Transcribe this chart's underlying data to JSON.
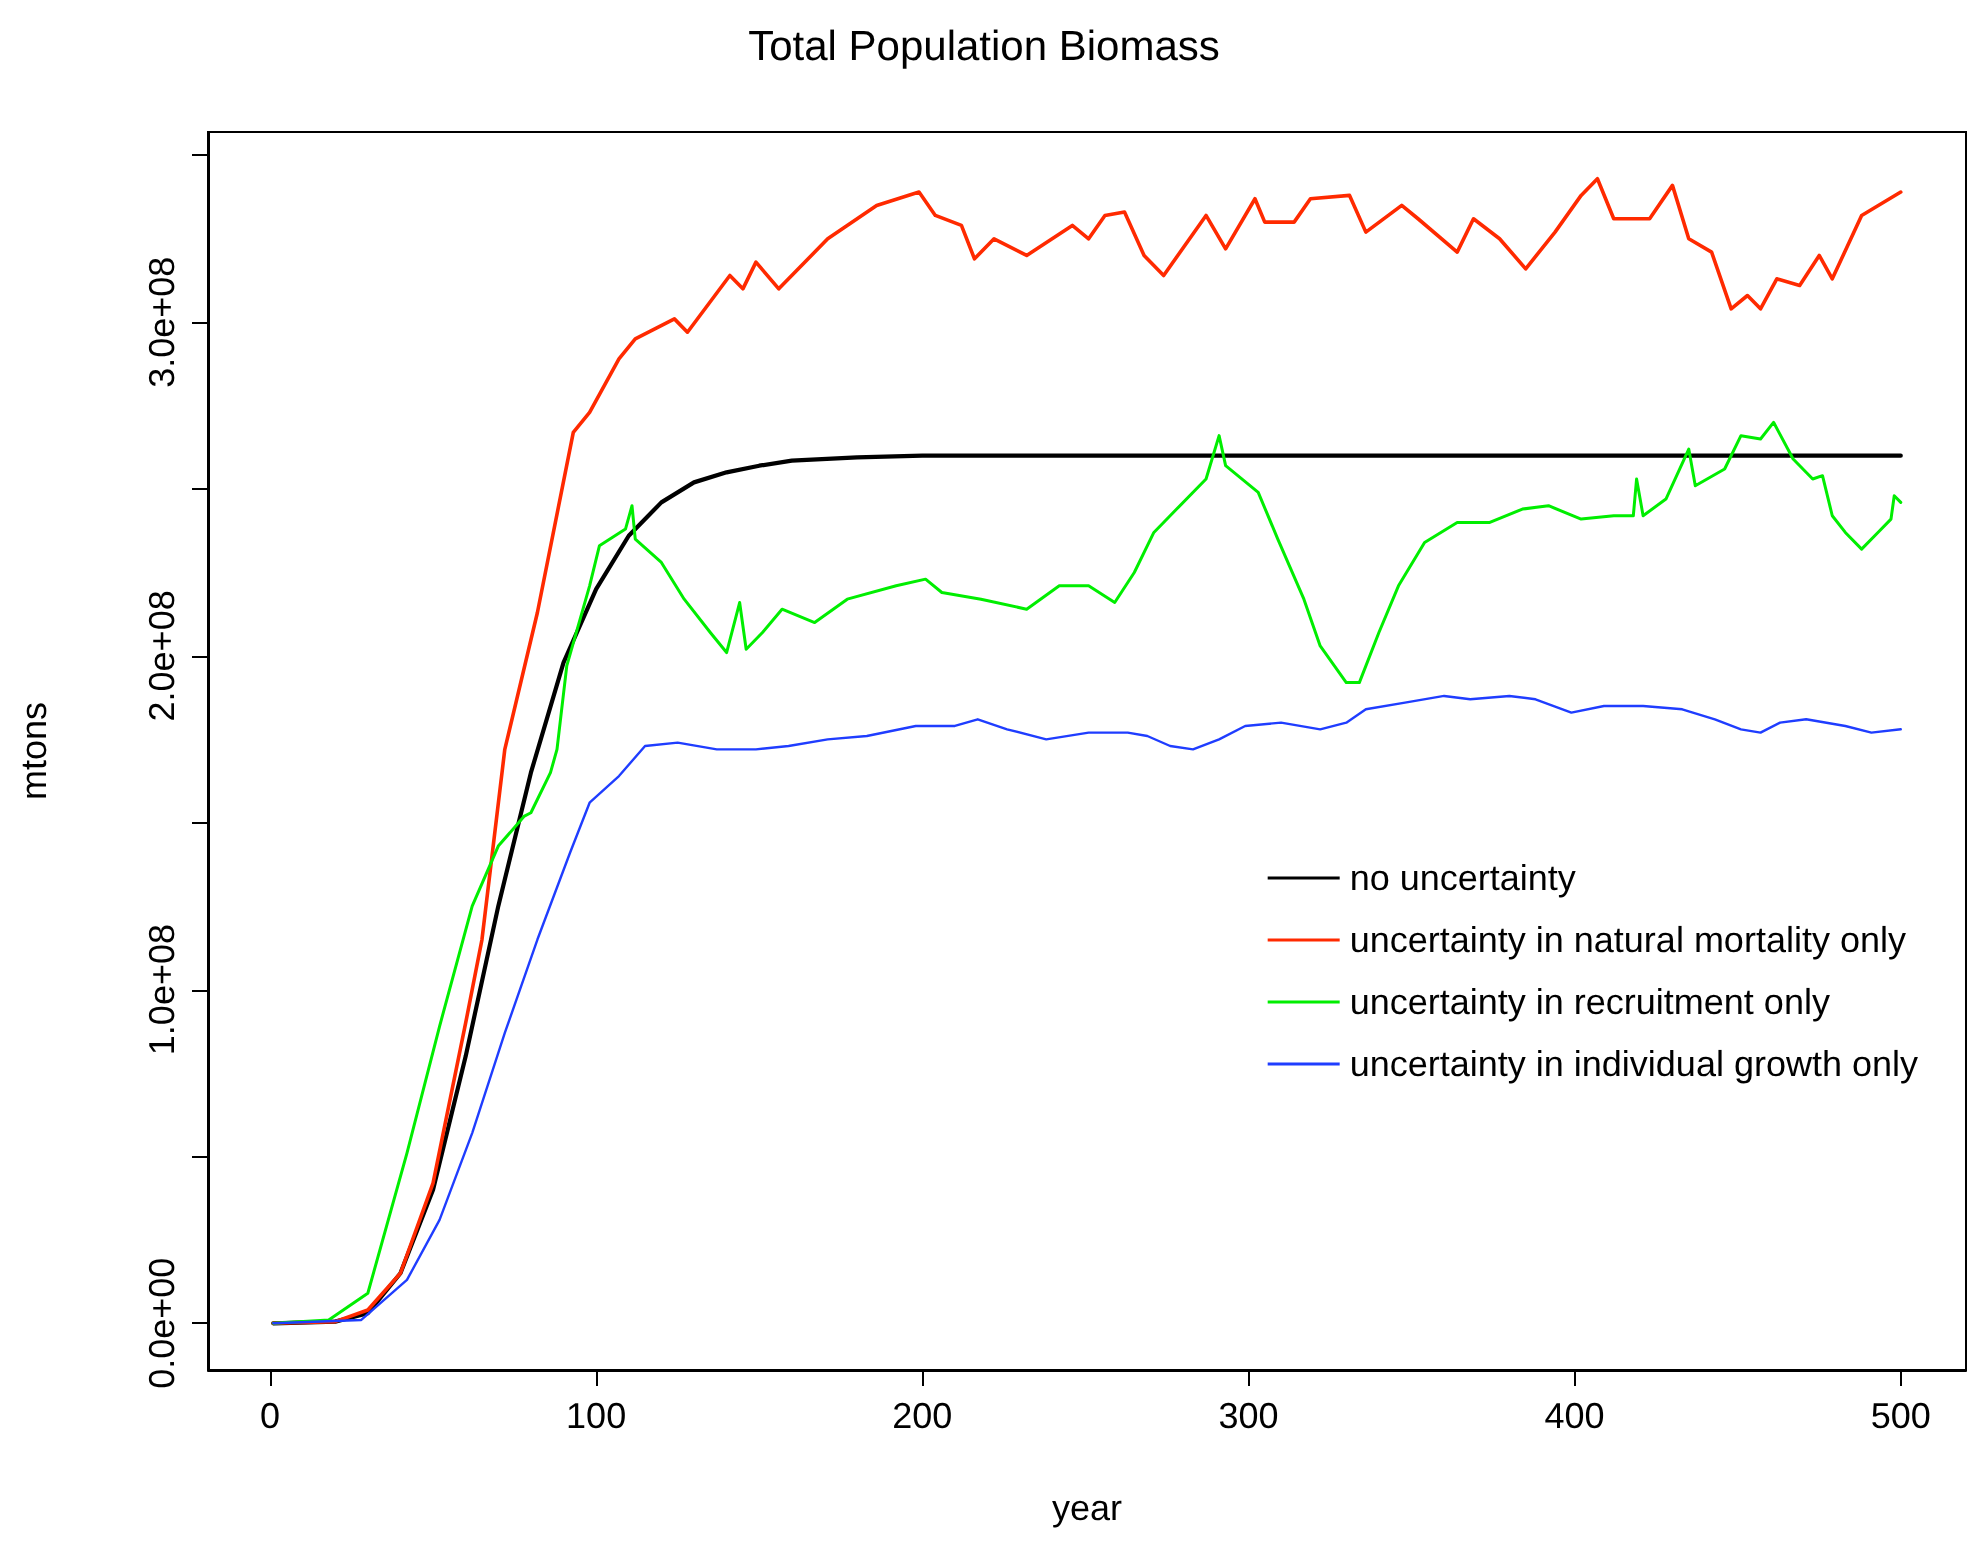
{
  "chart_data": {
    "type": "line",
    "title": "Total Population Biomass",
    "xlabel": "year",
    "ylabel": "mtons",
    "xlim": [
      -19,
      520
    ],
    "ylim": [
      -14000000,
      357000000
    ],
    "xticks": [
      0,
      100,
      200,
      300,
      400,
      500
    ],
    "yticks": [
      {
        "value": 0,
        "label": "0.0e+00"
      },
      {
        "value": 50000000,
        "label": null
      },
      {
        "value": 100000000,
        "label": "1.0e+08"
      },
      {
        "value": 150000000,
        "label": null
      },
      {
        "value": 200000000,
        "label": "2.0e+08"
      },
      {
        "value": 250000000,
        "label": null
      },
      {
        "value": 300000000,
        "label": "3.0e+08"
      },
      {
        "value": 350000000,
        "label": null
      }
    ],
    "grid": false,
    "legend": "right",
    "line_style": "solid",
    "series": [
      {
        "name": "no uncertainty",
        "color": "#000000",
        "x": [
          1,
          20,
          30,
          40,
          50,
          60,
          70,
          80,
          90,
          100,
          110,
          120,
          130,
          140,
          150,
          160,
          180,
          200,
          300,
          400,
          500
        ],
        "values": [
          0,
          500000,
          3000000,
          15000000,
          40000000,
          80000000,
          125000000,
          165000000,
          198000000,
          220000000,
          236000000,
          246000000,
          252000000,
          255000000,
          257000000,
          258500000,
          259500000,
          260000000,
          260000000,
          260000000,
          260000000
        ]
      },
      {
        "name": "uncertainty in natural mortality only",
        "color": "#ff2a00",
        "x": [
          1,
          20,
          30,
          40,
          50,
          60,
          65,
          72,
          82,
          93,
          98,
          107,
          112,
          124,
          128,
          141,
          145,
          149,
          156,
          171,
          186,
          199,
          204,
          212,
          216,
          222,
          232,
          246,
          251,
          256,
          262,
          268,
          274,
          287,
          293,
          302,
          305,
          314,
          319,
          331,
          336,
          347,
          352,
          364,
          369,
          377,
          385,
          394,
          402,
          407,
          412,
          423,
          430,
          435,
          442,
          448,
          453,
          457,
          462,
          469,
          475,
          479,
          488,
          500
        ],
        "values": [
          0,
          500000,
          4000000,
          15000000,
          42000000,
          90000000,
          115000000,
          172000000,
          213000000,
          267000000,
          273000000,
          289000000,
          295000000,
          301000000,
          297000000,
          314000000,
          310000000,
          318000000,
          310000000,
          325000000,
          335000000,
          339000000,
          332000000,
          329000000,
          319000000,
          325000000,
          320000000,
          329000000,
          325000000,
          332000000,
          333000000,
          320000000,
          314000000,
          332000000,
          322000000,
          337000000,
          330000000,
          330000000,
          337000000,
          338000000,
          327000000,
          335000000,
          331000000,
          321000000,
          331000000,
          325000000,
          316000000,
          327000000,
          338000000,
          343000000,
          331000000,
          331000000,
          341000000,
          325000000,
          321000000,
          304000000,
          308000000,
          304000000,
          313000000,
          311000000,
          320000000,
          313000000,
          332000000,
          339000000
        ]
      },
      {
        "name": "uncertainty in recruitment only",
        "color": "#00ee00",
        "x": [
          1,
          18,
          30,
          42,
          52,
          62,
          70,
          78,
          80,
          86,
          88,
          91,
          98,
          101,
          109,
          111,
          112,
          120,
          127,
          135,
          140,
          144,
          146,
          151,
          157,
          167,
          177,
          192,
          201,
          206,
          218,
          232,
          242,
          251,
          259,
          265,
          271,
          278,
          287,
          291,
          293,
          303,
          309,
          317,
          322,
          330,
          334,
          340,
          346,
          354,
          364,
          374,
          384,
          392,
          402,
          412,
          418,
          419,
          421,
          428,
          435,
          437,
          446,
          451,
          457,
          461,
          467,
          473,
          476,
          479,
          483,
          488,
          493,
          497,
          498,
          500
        ],
        "values": [
          0,
          1000000,
          9000000,
          51000000,
          89000000,
          125000000,
          143000000,
          152000000,
          153000000,
          165000000,
          172000000,
          197000000,
          221000000,
          233000000,
          238000000,
          245000000,
          235000000,
          228000000,
          217000000,
          207000000,
          201000000,
          216000000,
          202000000,
          207000000,
          214000000,
          210000000,
          217000000,
          221000000,
          223000000,
          219000000,
          217000000,
          214000000,
          221000000,
          221000000,
          216000000,
          225000000,
          237000000,
          244000000,
          253000000,
          266000000,
          257000000,
          249000000,
          235000000,
          217000000,
          203000000,
          192000000,
          192000000,
          207000000,
          221000000,
          234000000,
          240000000,
          240000000,
          244000000,
          245000000,
          241000000,
          242000000,
          242000000,
          253000000,
          242000000,
          247000000,
          262000000,
          251000000,
          256000000,
          266000000,
          265000000,
          270000000,
          259000000,
          253000000,
          254000000,
          242000000,
          237000000,
          232000000,
          237000000,
          241000000,
          248000000,
          246000000
        ]
      },
      {
        "name": "uncertainty in individual growth only",
        "color": "#1f3dff",
        "x": [
          1,
          28,
          42,
          52,
          62,
          72,
          82,
          92,
          98,
          107,
          115,
          125,
          137,
          149,
          159,
          171,
          183,
          198,
          210,
          217,
          226,
          238,
          251,
          263,
          269,
          276,
          283,
          291,
          299,
          310,
          322,
          330,
          336,
          348,
          360,
          368,
          380,
          388,
          399,
          409,
          421,
          433,
          443,
          451,
          457,
          463,
          471,
          483,
          491,
          500
        ],
        "values": [
          0,
          1000000,
          13000000,
          31000000,
          57000000,
          87000000,
          115000000,
          141000000,
          156000000,
          164000000,
          173000000,
          174000000,
          172000000,
          172000000,
          173000000,
          175000000,
          176000000,
          179000000,
          179000000,
          181000000,
          178000000,
          175000000,
          177000000,
          177000000,
          176000000,
          173000000,
          172000000,
          175000000,
          179000000,
          180000000,
          178000000,
          180000000,
          184000000,
          186000000,
          188000000,
          187000000,
          188000000,
          187000000,
          183000000,
          185000000,
          185000000,
          184000000,
          181000000,
          178000000,
          177000000,
          180000000,
          181000000,
          179000000,
          177000000,
          178000000
        ]
      }
    ]
  }
}
